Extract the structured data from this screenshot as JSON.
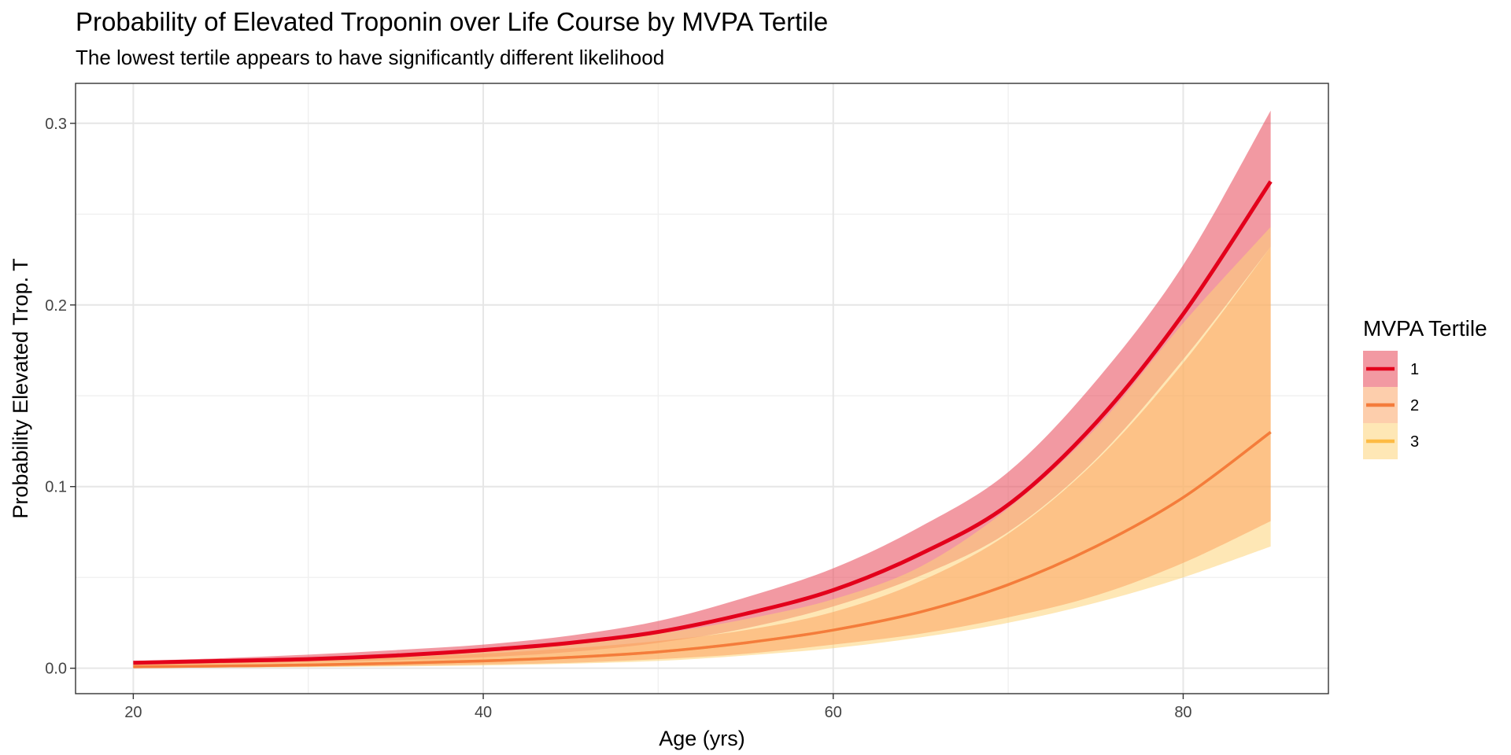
{
  "chart_data": {
    "type": "line",
    "title": "Probability of Elevated Troponin over Life Course by MVPA Tertile",
    "subtitle": "The lowest tertile appears to have significantly different likelihood",
    "xlabel": "Age (yrs)",
    "ylabel": "Probability Elevated Trop. T",
    "xlim": [
      16.7,
      88.3
    ],
    "ylim": [
      -0.014,
      0.322
    ],
    "x_ticks": [
      20,
      40,
      60,
      80
    ],
    "x_tick_labels": [
      "20",
      "40",
      "60",
      "80"
    ],
    "y_ticks": [
      0.0,
      0.1,
      0.2,
      0.3
    ],
    "y_tick_labels": [
      "0.0",
      "0.1",
      "0.2",
      "0.3"
    ],
    "grid": true,
    "legend": {
      "title": "MVPA Tertile",
      "position": "right"
    },
    "x": [
      20,
      25,
      30,
      35,
      40,
      45,
      50,
      55,
      60,
      65,
      70,
      75,
      80,
      85
    ],
    "series": [
      {
        "name": "1",
        "color": "#e3001b",
        "band_color": "#e8505f",
        "band_opacity": 0.58,
        "values": [
          0.003,
          0.004,
          0.005,
          0.007,
          0.01,
          0.014,
          0.02,
          0.03,
          0.043,
          0.063,
          0.09,
          0.135,
          0.195,
          0.268
        ],
        "lower": [
          0.0015,
          0.0025,
          0.0035,
          0.0045,
          0.006,
          0.009,
          0.014,
          0.022,
          0.034,
          0.051,
          0.075,
          0.115,
          0.17,
          0.232
        ],
        "upper": [
          0.004,
          0.0055,
          0.0075,
          0.01,
          0.013,
          0.018,
          0.026,
          0.039,
          0.055,
          0.078,
          0.108,
          0.158,
          0.222,
          0.307
        ]
      },
      {
        "name": "2",
        "color": "#f47c3c",
        "band_color": "#fc9d5a",
        "band_opacity": 0.5,
        "values": [
          0.0008,
          0.0012,
          0.0018,
          0.0027,
          0.004,
          0.006,
          0.009,
          0.014,
          0.021,
          0.031,
          0.046,
          0.067,
          0.094,
          0.13
        ],
        "lower": [
          0.0003,
          0.0005,
          0.0008,
          0.0013,
          0.002,
          0.003,
          0.005,
          0.008,
          0.013,
          0.019,
          0.028,
          0.04,
          0.058,
          0.081
        ],
        "upper": [
          0.002,
          0.003,
          0.004,
          0.006,
          0.008,
          0.011,
          0.015,
          0.021,
          0.031,
          0.048,
          0.074,
          0.114,
          0.168,
          0.232
        ]
      },
      {
        "name": "3",
        "color": "#fdbb44",
        "band_color": "#fed379",
        "band_opacity": 0.55,
        "values": [
          0.0008,
          0.0012,
          0.0018,
          0.0027,
          0.004,
          0.006,
          0.009,
          0.014,
          0.021,
          0.031,
          0.046,
          0.067,
          0.094,
          0.13
        ],
        "lower": [
          0.0002,
          0.0004,
          0.0006,
          0.001,
          0.0015,
          0.0025,
          0.004,
          0.007,
          0.011,
          0.017,
          0.025,
          0.036,
          0.05,
          0.067
        ],
        "upper": [
          0.0025,
          0.0035,
          0.005,
          0.007,
          0.01,
          0.014,
          0.019,
          0.027,
          0.038,
          0.056,
          0.088,
          0.132,
          0.19,
          0.243
        ]
      }
    ]
  }
}
